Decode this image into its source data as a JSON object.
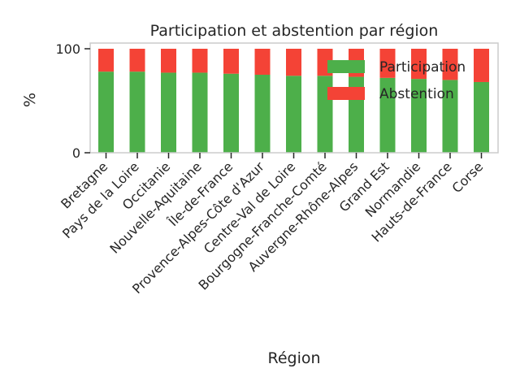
{
  "chart_data": {
    "type": "bar",
    "stacked": true,
    "title": "Participation et abstention par région",
    "xlabel": "Région",
    "ylabel": "%",
    "ylim": [
      0,
      100
    ],
    "yticks": [
      0,
      100
    ],
    "grid": false,
    "legend_position": "top-right",
    "categories": [
      "Bretagne",
      "Pays de la Loire",
      "Occitanie",
      "Nouvelle-Aquitaine",
      "Île-de-France",
      "Provence-Alpes-Côte d'Azur",
      "Centre-Val de Loire",
      "Bourgogne-Franche-Comté",
      "Auvergne-Rhône-Alpes",
      "Grand Est",
      "Normandie",
      "Hauts-de-France",
      "Corse"
    ],
    "series": [
      {
        "name": "Participation",
        "color": "#4daf4a",
        "values": [
          78,
          78,
          77,
          77,
          76,
          75,
          74,
          74,
          73,
          72,
          71,
          70,
          68
        ]
      },
      {
        "name": "Abstention",
        "color": "#f44336",
        "values": [
          22,
          22,
          23,
          23,
          24,
          25,
          26,
          26,
          27,
          28,
          29,
          30,
          32
        ]
      }
    ]
  }
}
